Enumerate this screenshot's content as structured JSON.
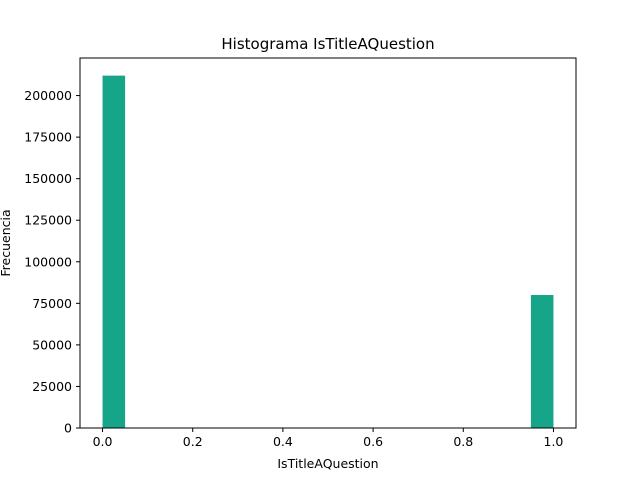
{
  "chart_data": {
    "type": "bar",
    "title": "Histograma IsTitleAQuestion",
    "xlabel": "IsTitleAQuestion",
    "ylabel": "Frecuencia",
    "bin_count": 20,
    "bins": [
      {
        "x0": 0.0,
        "x1": 0.05,
        "count": 212000
      },
      {
        "x0": 0.95,
        "x1": 1.0,
        "count": 80000
      }
    ],
    "xlim": [
      -0.05,
      1.05
    ],
    "ylim": [
      0,
      222600
    ],
    "xticks": [
      0.0,
      0.2,
      0.4,
      0.6,
      0.8,
      1.0
    ],
    "xtick_labels": [
      "0.0",
      "0.2",
      "0.4",
      "0.6",
      "0.8",
      "1.0"
    ],
    "yticks": [
      0,
      25000,
      50000,
      75000,
      100000,
      125000,
      150000,
      175000,
      200000
    ],
    "ytick_labels": [
      "0",
      "25000",
      "50000",
      "75000",
      "100000",
      "125000",
      "150000",
      "175000",
      "200000"
    ],
    "bar_color": "#17a589",
    "grid": false,
    "legend": "none"
  }
}
